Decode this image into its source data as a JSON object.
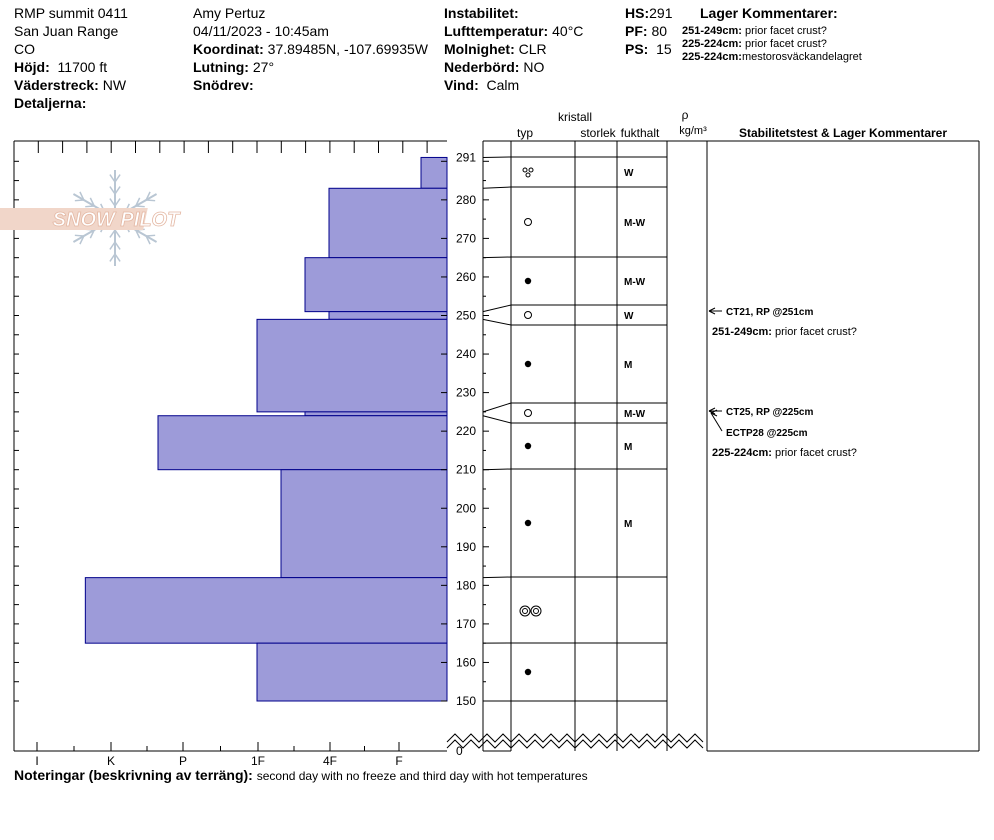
{
  "header": {
    "location": "RMP summit 0411",
    "range": "San Juan Range",
    "state": "CO",
    "elevation_label": "Höjd:",
    "elevation": "11700 ft",
    "aspect_label": "Väderstreck:",
    "aspect": "NW",
    "details_label": "Detaljerna:",
    "observer": "Amy  Pertuz",
    "datetime": "04/11/2023 - 10:45am",
    "coord_label": "Koordinat:",
    "coordinates": "37.89485N, -107.69935W",
    "slope_label": "Lutning:",
    "slope": "27°",
    "drift_label": "Snödrev:",
    "drift": "",
    "instability_label": "Instabilitet:",
    "instability": "",
    "airtemp_label": "Lufttemperatur:",
    "airtemp": "40°C",
    "sky_label": "Molnighet:",
    "sky": "CLR",
    "precip_label": "Nederbörd:",
    "precip": "NO",
    "wind_label": "Vind:",
    "wind": "Calm",
    "hs_label": "HS:",
    "hs": "291",
    "pf_label": "PF:",
    "pf": "80",
    "ps_label": "PS:",
    "ps": "15",
    "layer_comments_title": "Lager Kommentarer:"
  },
  "layer_comments": [
    {
      "range": "251-249cm:",
      "text": "prior facet crust?"
    },
    {
      "range": "225-224cm:",
      "text": "prior facet crust?"
    },
    {
      "range": "225-224cm:",
      "text": "mestorosväckandelagret"
    }
  ],
  "columns": {
    "kristall": "kristall",
    "typ": "typ",
    "storlek": "storlek",
    "fukthalt": "fukthalt",
    "rho": "ρ",
    "rho_unit": "kg/m³",
    "stability": "Stabilitetstest & Lager Kommentarer"
  },
  "logo_text": "SNOW PILOT",
  "notes_label": "Noteringar (beskrivning av terräng):",
  "notes_text": "second day with no freeze and third day with hot temperatures",
  "colors": {
    "hardness_fill": "#9d9bd9",
    "hardness_stroke": "#00008b"
  },
  "chart_data": {
    "type": "bar",
    "orientation": "horizontal",
    "title": "",
    "x_axis_categories": [
      "I",
      "K",
      "P",
      "1F",
      "4F",
      "F"
    ],
    "y_axis": {
      "range": [
        150,
        291
      ],
      "ticks": [
        150,
        160,
        170,
        180,
        190,
        200,
        210,
        220,
        230,
        240,
        250,
        260,
        270,
        280,
        290
      ],
      "top_label": "291",
      "bottom_label": "0"
    },
    "hardness_layers": [
      {
        "top": 291,
        "bottom": 283,
        "hardness": "F-"
      },
      {
        "top": 283,
        "bottom": 265,
        "hardness": "4F"
      },
      {
        "top": 265,
        "bottom": 251,
        "hardness": "4F+"
      },
      {
        "top": 251,
        "bottom": 249,
        "hardness": "4F"
      },
      {
        "top": 249,
        "bottom": 225,
        "hardness": "1F"
      },
      {
        "top": 225,
        "bottom": 224,
        "hardness": "4F+"
      },
      {
        "top": 224,
        "bottom": 210,
        "hardness": "P+"
      },
      {
        "top": 210,
        "bottom": 182,
        "hardness": "1F-"
      },
      {
        "top": 182,
        "bottom": 165,
        "hardness": "K+"
      },
      {
        "top": 165,
        "bottom": 150,
        "hardness": "1F"
      }
    ],
    "layers": [
      {
        "top": 291,
        "bottom": 283,
        "grain": "clustered-rounded-grains",
        "moisture": "W"
      },
      {
        "top": 283,
        "bottom": 265,
        "grain": "open-circle",
        "moisture": "M-W"
      },
      {
        "top": 265,
        "bottom": 251,
        "grain": "filled-circle",
        "moisture": "M-W"
      },
      {
        "top": 251,
        "bottom": 249,
        "grain": "open-circle",
        "moisture": "W"
      },
      {
        "top": 249,
        "bottom": 225,
        "grain": "filled-circle",
        "moisture": "M"
      },
      {
        "top": 225,
        "bottom": 224,
        "grain": "open-circle",
        "moisture": "M-W"
      },
      {
        "top": 224,
        "bottom": 210,
        "grain": "filled-circle",
        "moisture": "M"
      },
      {
        "top": 210,
        "bottom": 182,
        "grain": "filled-circle",
        "moisture": "M"
      },
      {
        "top": 182,
        "bottom": 165,
        "grain": "melt-forms-double-circle",
        "moisture": ""
      },
      {
        "top": 165,
        "bottom": 150,
        "grain": "filled-circle",
        "moisture": ""
      }
    ],
    "tests": [
      {
        "depth": 251,
        "label": "CT21, RP @251cm"
      },
      {
        "depth": 225,
        "label": "CT25, RP @225cm"
      },
      {
        "depth": 225,
        "label": "ECTP28 @225cm"
      }
    ],
    "right_comments": [
      {
        "depth": 251,
        "range": "251-249cm:",
        "text": "prior facet crust?"
      },
      {
        "depth": 225,
        "range": "225-224cm:",
        "text": "prior facet crust?"
      }
    ]
  }
}
